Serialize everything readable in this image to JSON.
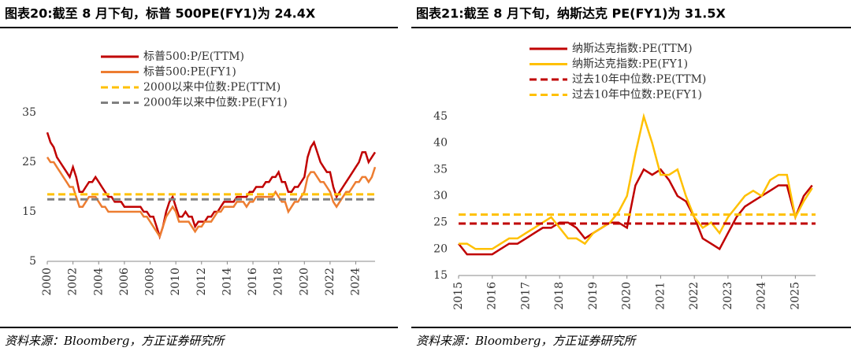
{
  "chart_data": [
    {
      "type": "line",
      "title": "图表20:截至 8 月下旬，标普 500PE(FY1)为 24.4X",
      "source": "资料来源：Bloomberg，方正证券研究所",
      "xlim": [
        2000,
        2025.5
      ],
      "xticks": [
        2000,
        2002,
        2004,
        2006,
        2008,
        2010,
        2012,
        2014,
        2016,
        2018,
        2020,
        2022,
        2024
      ],
      "ylim": [
        5,
        35
      ],
      "yticks": [
        5,
        15,
        25,
        35
      ],
      "x": [
        2000,
        2000.25,
        2000.5,
        2000.75,
        2001,
        2001.25,
        2001.5,
        2001.75,
        2002,
        2002.25,
        2002.5,
        2002.75,
        2003,
        2003.25,
        2003.5,
        2003.75,
        2004,
        2004.25,
        2004.5,
        2004.75,
        2005,
        2005.25,
        2005.5,
        2005.75,
        2006,
        2006.25,
        2006.5,
        2006.75,
        2007,
        2007.25,
        2007.5,
        2007.75,
        2008,
        2008.25,
        2008.5,
        2008.75,
        2009,
        2009.25,
        2009.5,
        2009.75,
        2010,
        2010.25,
        2010.5,
        2010.75,
        2011,
        2011.25,
        2011.5,
        2011.75,
        2012,
        2012.25,
        2012.5,
        2012.75,
        2013,
        2013.25,
        2013.5,
        2013.75,
        2014,
        2014.25,
        2014.5,
        2014.75,
        2015,
        2015.25,
        2015.5,
        2015.75,
        2016,
        2016.25,
        2016.5,
        2016.75,
        2017,
        2017.25,
        2017.5,
        2017.75,
        2018,
        2018.25,
        2018.5,
        2018.75,
        2019,
        2019.25,
        2019.5,
        2019.75,
        2020,
        2020.25,
        2020.5,
        2020.75,
        2021,
        2021.25,
        2021.5,
        2021.75,
        2022,
        2022.25,
        2022.5,
        2022.75,
        2023,
        2023.25,
        2023.5,
        2023.75,
        2024,
        2024.25,
        2024.5,
        2024.75,
        2025,
        2025.25,
        2025.5
      ],
      "series": [
        {
          "name": "标普500:P/E(TTM)",
          "color": "#c00000",
          "dash": false,
          "values": [
            31,
            29,
            28,
            26,
            25,
            24,
            23,
            22,
            24,
            22,
            19,
            19,
            20,
            21,
            21,
            22,
            21,
            20,
            19,
            18,
            18,
            17,
            17,
            17,
            16,
            16,
            16,
            16,
            16,
            16,
            15,
            15,
            14,
            14,
            12,
            10,
            12,
            15,
            17,
            18,
            16,
            14,
            14,
            15,
            14,
            14,
            12,
            13,
            13,
            13,
            14,
            14,
            15,
            15,
            16,
            17,
            17,
            17,
            17,
            18,
            18,
            18,
            18,
            19,
            19,
            20,
            20,
            20,
            21,
            21,
            22,
            22,
            23,
            21,
            21,
            19,
            19,
            20,
            20,
            21,
            22,
            26,
            28,
            29,
            27,
            25,
            24,
            23,
            23,
            20,
            18,
            19,
            20,
            21,
            22,
            23,
            24,
            25,
            27,
            27,
            25,
            26,
            27
          ]
        },
        {
          "name": "标普500:PE(FY1)",
          "color": "#ed7d31",
          "dash": false,
          "values": [
            26,
            25,
            25,
            24,
            23,
            22,
            21,
            20,
            20,
            18,
            16,
            16,
            17,
            18,
            18,
            18,
            17,
            16,
            16,
            15,
            15,
            15,
            15,
            15,
            15,
            15,
            15,
            15,
            15,
            15,
            14,
            14,
            13,
            12,
            11,
            10,
            12,
            14,
            15,
            16,
            15,
            13,
            13,
            13,
            13,
            12,
            11,
            12,
            12,
            13,
            13,
            13,
            14,
            15,
            15,
            16,
            16,
            16,
            16,
            17,
            17,
            17,
            16,
            17,
            17,
            18,
            18,
            18,
            18,
            18,
            18,
            19,
            18,
            17,
            17,
            15,
            16,
            17,
            17,
            18,
            19,
            22,
            23,
            23,
            22,
            21,
            21,
            20,
            19,
            17,
            16,
            17,
            18,
            19,
            19,
            20,
            21,
            21,
            22,
            22,
            21,
            22,
            24
          ]
        },
        {
          "name": "2000以来中位数:PE(TTM)",
          "color": "#ffc000",
          "dash": true,
          "x": [
            2000,
            2025.5
          ],
          "values": [
            18.5,
            18.5
          ]
        },
        {
          "name": "2000年以来中位数:PE(FY1)",
          "color": "#808080",
          "dash": true,
          "x": [
            2000,
            2025.5
          ],
          "values": [
            17.5,
            17.5
          ]
        }
      ]
    },
    {
      "type": "line",
      "title": "图表21:截至 8 月下旬，纳斯达克 PE(FY1)为 31.5X",
      "source": "资料来源：Bloomberg，方正证券研究所",
      "xlim": [
        2015,
        2025.6
      ],
      "xticks": [
        2015,
        2016,
        2017,
        2018,
        2019,
        2020,
        2021,
        2022,
        2023,
        2024,
        2025
      ],
      "ylim": [
        15,
        45
      ],
      "yticks": [
        15,
        20,
        25,
        30,
        35,
        40,
        45
      ],
      "x": [
        2015,
        2015.25,
        2015.5,
        2015.75,
        2016,
        2016.25,
        2016.5,
        2016.75,
        2017,
        2017.25,
        2017.5,
        2017.75,
        2018,
        2018.25,
        2018.5,
        2018.75,
        2019,
        2019.25,
        2019.5,
        2019.75,
        2020,
        2020.25,
        2020.5,
        2020.75,
        2021,
        2021.25,
        2021.5,
        2021.75,
        2022,
        2022.25,
        2022.5,
        2022.75,
        2023,
        2023.25,
        2023.5,
        2023.75,
        2024,
        2024.25,
        2024.5,
        2024.75,
        2025,
        2025.25,
        2025.5
      ],
      "series": [
        {
          "name": "纳斯达克指数:PE(TTM)",
          "color": "#c00000",
          "dash": false,
          "values": [
            21,
            19,
            19,
            19,
            19,
            20,
            21,
            21,
            22,
            23,
            24,
            24,
            25,
            25,
            24,
            22,
            23,
            24,
            25,
            25,
            24,
            32,
            35,
            34,
            35,
            33,
            30,
            29,
            26,
            22,
            21,
            20,
            23,
            26,
            28,
            29,
            30,
            31,
            32,
            32,
            26,
            30,
            32
          ]
        },
        {
          "name": "纳斯达克指数:PE(FY1)",
          "color": "#ffc000",
          "dash": false,
          "values": [
            21,
            21,
            20,
            20,
            20,
            21,
            22,
            22,
            23,
            24,
            25,
            26,
            24,
            22,
            22,
            21,
            23,
            24,
            25,
            27,
            30,
            38,
            45,
            40,
            34,
            34,
            35,
            30,
            26,
            24,
            25,
            23,
            26,
            28,
            30,
            31,
            30,
            33,
            34,
            34,
            26,
            29,
            31.5
          ]
        },
        {
          "name": "过去10年中位数:PE(TTM)",
          "color": "#c00000",
          "dash": true,
          "x": [
            2015,
            2025.6
          ],
          "values": [
            24.8,
            24.8
          ]
        },
        {
          "name": "过去10年中位数:PE(FY1)",
          "color": "#ffc000",
          "dash": true,
          "x": [
            2015,
            2025.6
          ],
          "values": [
            26.5,
            26.5
          ]
        }
      ]
    }
  ]
}
